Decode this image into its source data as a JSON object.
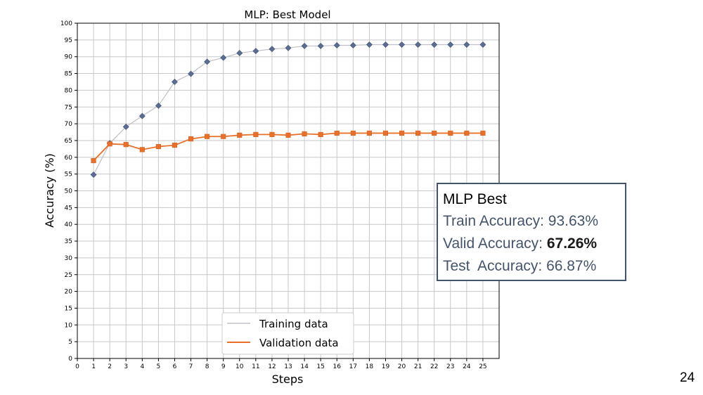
{
  "chart_data": {
    "type": "line",
    "title": "MLP: Best Model",
    "xlabel": "Steps",
    "ylabel": "Accuracy (%)",
    "xlim": [
      0,
      26
    ],
    "ylim": [
      0,
      100
    ],
    "xticks": [
      0,
      1,
      2,
      3,
      4,
      5,
      6,
      7,
      8,
      9,
      10,
      11,
      12,
      13,
      14,
      15,
      16,
      17,
      18,
      19,
      20,
      21,
      22,
      23,
      24,
      25
    ],
    "yticks": [
      0,
      5,
      10,
      15,
      20,
      25,
      30,
      35,
      40,
      45,
      50,
      55,
      60,
      65,
      70,
      75,
      80,
      85,
      90,
      95,
      100
    ],
    "grid": true,
    "legend_position": "bottom-center",
    "x": [
      1,
      2,
      3,
      4,
      5,
      6,
      7,
      8,
      9,
      10,
      11,
      12,
      13,
      14,
      15,
      16,
      17,
      18,
      19,
      20,
      21,
      22,
      23,
      24,
      25
    ],
    "series": [
      {
        "name": "Training data",
        "line_color": "#c0c0c8",
        "marker": "diamond",
        "marker_color": "#5a6e94",
        "values": [
          54.8,
          64.2,
          69.1,
          72.3,
          75.4,
          82.5,
          84.9,
          88.5,
          89.7,
          91.1,
          91.7,
          92.3,
          92.6,
          93.2,
          93.2,
          93.4,
          93.4,
          93.6,
          93.6,
          93.6,
          93.6,
          93.6,
          93.6,
          93.6,
          93.6
        ]
      },
      {
        "name": "Validation data",
        "line_color": "#e8702a",
        "marker": "square",
        "marker_color": "#e8702a",
        "values": [
          59.0,
          64.0,
          63.8,
          62.3,
          63.2,
          63.6,
          65.5,
          66.2,
          66.2,
          66.6,
          66.8,
          66.8,
          66.6,
          67.0,
          66.8,
          67.2,
          67.2,
          67.2,
          67.2,
          67.2,
          67.2,
          67.2,
          67.2,
          67.2,
          67.2
        ]
      }
    ]
  },
  "info_box": {
    "title": "MLP Best",
    "train_label": "Train Accuracy: ",
    "train_value": "93.63%",
    "valid_label": "Valid Accuracy: ",
    "valid_value": "67.26%",
    "test_label": "Test  Accuracy: ",
    "test_value": "66.87%"
  },
  "slide_number": "24"
}
